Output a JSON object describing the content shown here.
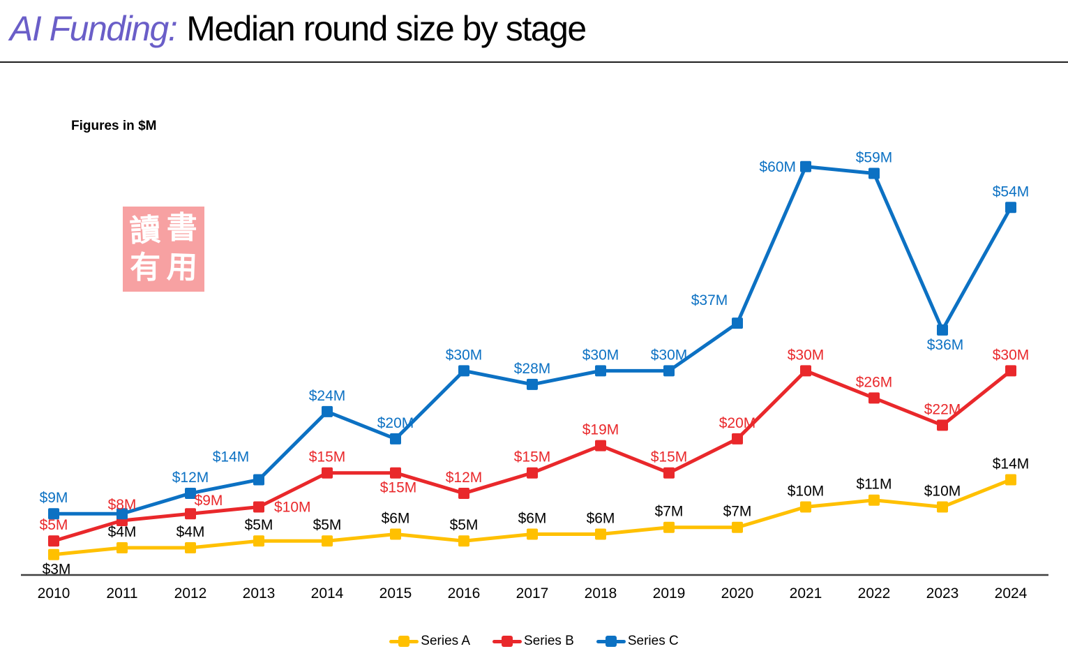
{
  "page": {
    "background": "#FFFFFF"
  },
  "header": {
    "title_accent": "AI Funding:",
    "title_rest": "Median round size by stage",
    "accent_color": "#6A5EC8",
    "rest_color": "#000000"
  },
  "note": {
    "text": "Figures in $M"
  },
  "watermark": {
    "rows": [
      [
        "讀",
        "書"
      ],
      [
        "有",
        "用"
      ]
    ],
    "bg_color": "#F7A1A2",
    "text_color": "#FFFFFF"
  },
  "chart_data": {
    "type": "line",
    "title": "AI Funding: Median round size by stage",
    "note": "Figures in $M",
    "units": "$M",
    "x": [
      "2010",
      "2011",
      "2012",
      "2013",
      "2014",
      "2015",
      "2016",
      "2017",
      "2018",
      "2019",
      "2020",
      "2021",
      "2022",
      "2023",
      "2024"
    ],
    "xlabel": "",
    "ylabel": "",
    "ylim": [
      0,
      65
    ],
    "grid": false,
    "y_axis_shown": false,
    "legend_position": "bottom",
    "axis_color": "#3F3F3F",
    "tick_label_color": "#000000",
    "series": [
      {
        "name": "Series A",
        "color": "#FFC000",
        "label_color": "#000000",
        "values": [
          3,
          4,
          4,
          5,
          5,
          6,
          5,
          6,
          6,
          7,
          7,
          10,
          11,
          10,
          14
        ],
        "labels": [
          "$3M",
          "$4M",
          "$4M",
          "$5M",
          "$5M",
          "$6M",
          "$5M",
          "$6M",
          "$6M",
          "$7M",
          "$7M",
          "$10M",
          "$11M",
          "$10M",
          "$14M"
        ],
        "label_pos": [
          "below",
          "above",
          "above",
          "above",
          "above",
          "above",
          "above",
          "above",
          "above",
          "above",
          "above",
          "above",
          "above",
          "above",
          "above"
        ]
      },
      {
        "name": "Series B",
        "color": "#E9282B",
        "label_color": "#E9282B",
        "values": [
          5,
          8,
          9,
          10,
          15,
          15,
          12,
          15,
          19,
          15,
          20,
          30,
          26,
          22,
          30
        ],
        "labels": [
          "$5M",
          "$8M",
          "$9M",
          "$10M",
          "$15M",
          "$15M",
          "$12M",
          "$15M",
          "$19M",
          "$15M",
          "$20M",
          "$30M",
          "$26M",
          "$22M",
          "$30M"
        ],
        "label_pos": [
          "above",
          "above",
          "above-right",
          "right",
          "above",
          "below",
          "above",
          "above",
          "above",
          "above",
          "above",
          "above",
          "above",
          "above",
          "above"
        ]
      },
      {
        "name": "Series C",
        "color": "#0C71C3",
        "label_color": "#0C71C3",
        "values": [
          9,
          9,
          12,
          14,
          24,
          20,
          30,
          28,
          30,
          30,
          37,
          60,
          59,
          36,
          54
        ],
        "labels": [
          "$9M",
          null,
          "$12M",
          "$14M",
          "$24M",
          "$20M",
          "$30M",
          "$28M",
          "$30M",
          "$30M",
          "$37M",
          "$60M",
          "$59M",
          "$36M",
          "$54M"
        ],
        "label_pos": [
          "above",
          "hidden",
          "above",
          "above-left",
          "above",
          "above",
          "above",
          "above",
          "above",
          "above",
          "above-left",
          "left",
          "above",
          "below",
          "above"
        ]
      }
    ]
  }
}
